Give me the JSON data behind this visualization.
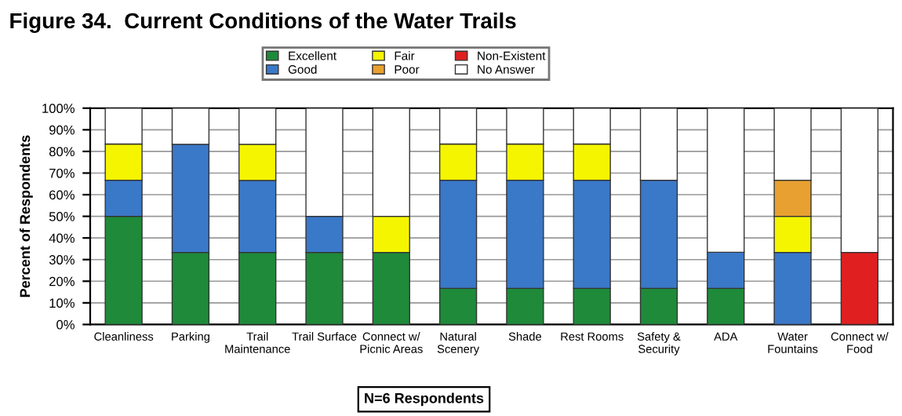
{
  "chart_data": {
    "type": "bar",
    "title": "Figure 34.  Current Conditions of the Water Trails",
    "ylabel": "Percent of Respondents",
    "categories": [
      "Cleanliness",
      "Parking",
      "Trail\nMaintenance",
      "Trail Surface",
      "Connect w/\nPicnic Areas",
      "Natural\nScenery",
      "Shade",
      "Rest Rooms",
      "Safety &\nSecurity",
      "ADA",
      "Water\nFountains",
      "Connect w/\nFood"
    ],
    "stacked": true,
    "series": [
      {
        "name": "Excellent",
        "color": "#1f8a3a",
        "values": [
          50,
          33.3,
          33.3,
          33.3,
          33.3,
          16.7,
          16.7,
          16.7,
          16.7,
          16.7,
          0,
          0
        ]
      },
      {
        "name": "Good",
        "color": "#3a78c8",
        "values": [
          16.7,
          50,
          33.3,
          16.7,
          0,
          50,
          50,
          50,
          50,
          16.7,
          33.3,
          0
        ]
      },
      {
        "name": "Fair",
        "color": "#f5f500",
        "values": [
          16.7,
          0,
          16.7,
          0,
          16.7,
          16.7,
          16.7,
          16.7,
          0,
          0,
          16.7,
          0
        ]
      },
      {
        "name": "Poor",
        "color": "#e8a030",
        "values": [
          0,
          0,
          0,
          0,
          0,
          0,
          0,
          0,
          0,
          0,
          16.7,
          0
        ]
      },
      {
        "name": "Non-Existent",
        "color": "#e02020",
        "values": [
          0,
          0,
          0,
          0,
          0,
          0,
          0,
          0,
          0,
          0,
          0,
          33.3
        ]
      },
      {
        "name": "No Answer",
        "color": "#ffffff",
        "values": [
          16.6,
          16.7,
          16.7,
          50,
          50,
          16.6,
          16.6,
          16.6,
          33.3,
          66.6,
          33.3,
          66.7
        ]
      }
    ],
    "ylim": [
      0,
      100
    ],
    "yticks": [
      {
        "value": 0,
        "label": "0%"
      },
      {
        "value": 10,
        "label": "10%"
      },
      {
        "value": 20,
        "label": "20%"
      },
      {
        "value": 30,
        "label": "30%"
      },
      {
        "value": 40,
        "label": "40%"
      },
      {
        "value": 50,
        "label": "50%"
      },
      {
        "value": 60,
        "label": "60%"
      },
      {
        "value": 70,
        "label": "70%"
      },
      {
        "value": 80,
        "label": "80%"
      },
      {
        "value": 90,
        "label": "90%"
      },
      {
        "value": 100,
        "label": "100%"
      }
    ],
    "grid": "y",
    "legend": "top",
    "annotations": [
      "N=6 Respondents"
    ]
  }
}
